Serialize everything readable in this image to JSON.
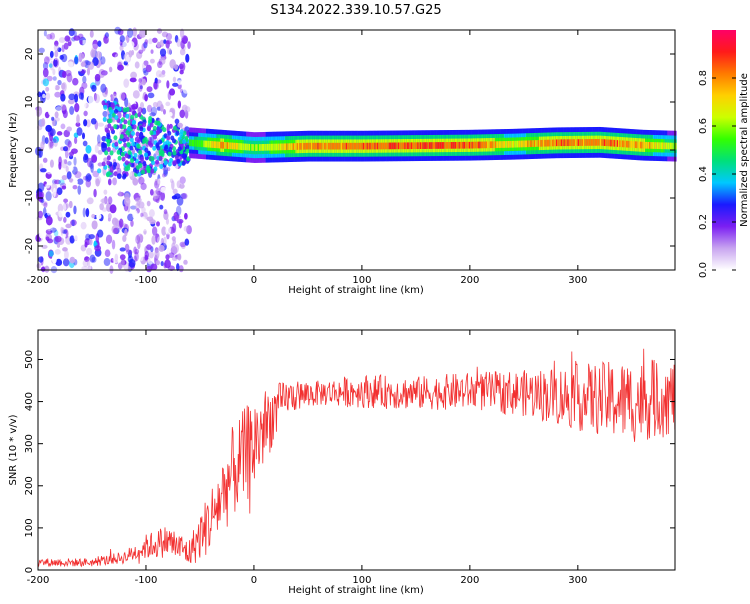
{
  "title": "S134.2022.339.10.57.G25",
  "chart_data": [
    {
      "type": "heatmap",
      "xlabel": "Height of straight line (km)",
      "ylabel": "Frequency (Hz)",
      "xlim": [
        -200,
        390
      ],
      "ylim": [
        -25,
        25
      ],
      "x_ticks": [
        -200,
        -100,
        0,
        100,
        200,
        300
      ],
      "y_ticks": [
        -20,
        -10,
        0,
        10,
        20
      ],
      "colorbar": {
        "label": "Normalized spectral amplitude",
        "range": [
          0,
          1
        ],
        "ticks": [
          0.0,
          0.2,
          0.4,
          0.6,
          0.8
        ],
        "colormap": [
          "#ffffff",
          "#c8a4f0",
          "#7b1ff2",
          "#1a1aff",
          "#00c8ff",
          "#00e07a",
          "#33ff00",
          "#ccff00",
          "#ffd000",
          "#ff7a00",
          "#ff1a1a",
          "#ff0066"
        ]
      },
      "ridge": [
        {
          "x": -60,
          "f": 1.5,
          "amp": 0.5
        },
        {
          "x": -30,
          "f": 1.0,
          "amp": 0.8
        },
        {
          "x": 0,
          "f": 0.5,
          "amp": 0.6
        },
        {
          "x": 50,
          "f": 0.8,
          "amp": 0.85
        },
        {
          "x": 100,
          "f": 0.8,
          "amp": 0.85
        },
        {
          "x": 150,
          "f": 0.9,
          "amp": 0.9
        },
        {
          "x": 200,
          "f": 1.0,
          "amp": 0.9
        },
        {
          "x": 240,
          "f": 1.2,
          "amp": 0.7
        },
        {
          "x": 280,
          "f": 1.5,
          "amp": 0.85
        },
        {
          "x": 320,
          "f": 1.6,
          "amp": 0.85
        },
        {
          "x": 360,
          "f": 1.0,
          "amp": 0.8
        },
        {
          "x": 390,
          "f": 0.8,
          "amp": 0.6
        }
      ],
      "scatter_region": {
        "x_range": [
          -200,
          -60
        ],
        "f_range": [
          -25,
          25
        ],
        "amp": 0.3
      }
    },
    {
      "type": "line",
      "xlabel": "Height of straight line (km)",
      "ylabel": "SNR (10 * v/v)",
      "xlim": [
        -200,
        390
      ],
      "ylim": [
        0,
        570
      ],
      "x_ticks": [
        -200,
        -100,
        0,
        100,
        200,
        300
      ],
      "y_ticks": [
        0,
        100,
        200,
        300,
        400,
        500
      ],
      "color": "#f23030",
      "envelope": [
        {
          "x": -200,
          "mean": 18,
          "spread": 10
        },
        {
          "x": -150,
          "mean": 18,
          "spread": 10
        },
        {
          "x": -120,
          "mean": 30,
          "spread": 15
        },
        {
          "x": -100,
          "mean": 55,
          "spread": 30
        },
        {
          "x": -80,
          "mean": 70,
          "spread": 40
        },
        {
          "x": -60,
          "mean": 40,
          "spread": 35
        },
        {
          "x": -40,
          "mean": 120,
          "spread": 80
        },
        {
          "x": -20,
          "mean": 230,
          "spread": 110
        },
        {
          "x": 0,
          "mean": 300,
          "spread": 120
        },
        {
          "x": 15,
          "mean": 360,
          "spread": 80
        },
        {
          "x": 30,
          "mean": 410,
          "spread": 40
        },
        {
          "x": 60,
          "mean": 420,
          "spread": 30
        },
        {
          "x": 100,
          "mean": 425,
          "spread": 40
        },
        {
          "x": 150,
          "mean": 420,
          "spread": 40
        },
        {
          "x": 200,
          "mean": 425,
          "spread": 45
        },
        {
          "x": 250,
          "mean": 420,
          "spread": 55
        },
        {
          "x": 300,
          "mean": 410,
          "spread": 80
        },
        {
          "x": 350,
          "mean": 400,
          "spread": 100
        },
        {
          "x": 390,
          "mean": 410,
          "spread": 90
        }
      ]
    }
  ]
}
